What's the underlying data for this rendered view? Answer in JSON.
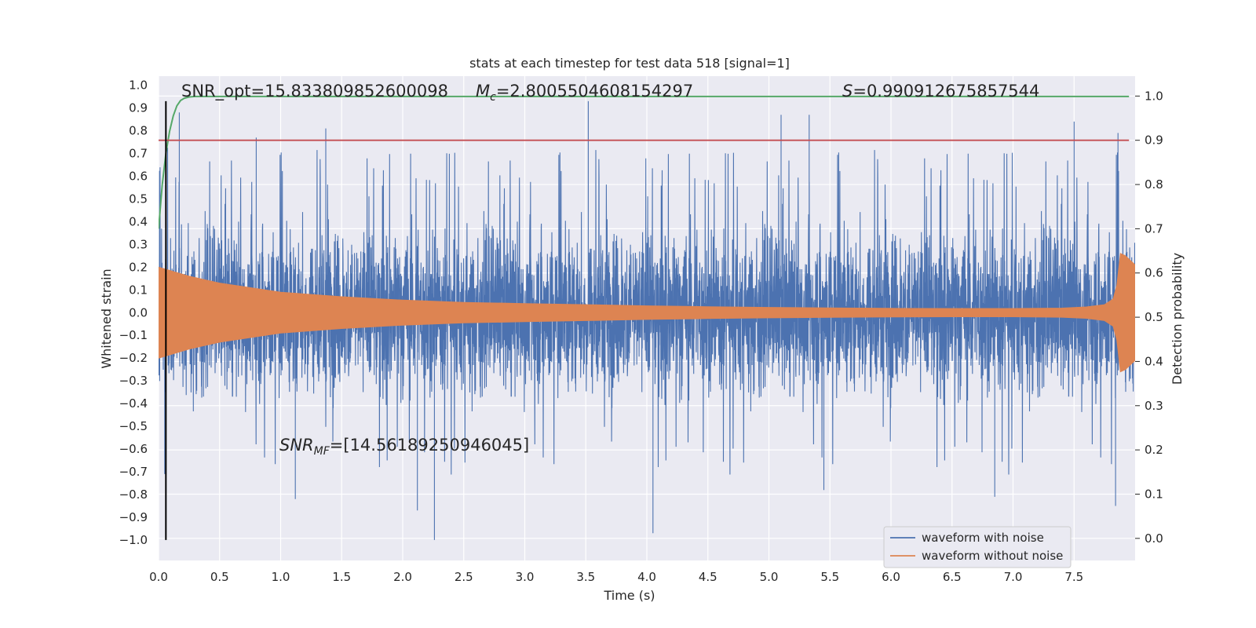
{
  "chart_data": {
    "type": "line",
    "title": "stats at each timestep for test data 518 [signal=1]",
    "xlabel": "Time (s)",
    "ylabel": "Whitened strain",
    "y2label": "Detection probability",
    "xlim": [
      0.0,
      8.0
    ],
    "ylim": [
      -1.09,
      1.04
    ],
    "y2lim": [
      -0.05,
      1.045
    ],
    "xticks": [
      0.0,
      0.5,
      1.0,
      1.5,
      2.0,
      2.5,
      3.0,
      3.5,
      4.0,
      4.5,
      5.0,
      5.5,
      6.0,
      6.5,
      7.0,
      7.5
    ],
    "yticks": [
      -1.0,
      -0.9,
      -0.8,
      -0.7,
      -0.6,
      -0.5,
      -0.4,
      -0.3,
      -0.2,
      -0.1,
      0.0,
      0.1,
      0.2,
      0.3,
      0.4,
      0.5,
      0.6,
      0.7,
      0.8,
      0.9,
      1.0
    ],
    "y2ticks": [
      0.0,
      0.1,
      0.2,
      0.3,
      0.4,
      0.5,
      0.6,
      0.7,
      0.8,
      0.9,
      1.0
    ],
    "grid": true,
    "background": "#eaeaf2",
    "legend_position": "lower-right",
    "series": [
      {
        "name": "waveform with noise",
        "color": "#4c72b0",
        "axis": "left",
        "description": "dense whitened noisy strain, roughly ±0.5 with spikes",
        "peaks": [
          {
            "t": 0.17,
            "v": 0.88
          },
          {
            "t": 0.8,
            "v": 0.77
          },
          {
            "t": 1.37,
            "v": 0.81
          },
          {
            "t": 3.52,
            "v": 0.93
          },
          {
            "t": 5.1,
            "v": 0.87
          },
          {
            "t": 5.33,
            "v": 0.87
          },
          {
            "t": 7.5,
            "v": 0.84
          },
          {
            "t": 7.86,
            "v": 0.79
          }
        ],
        "troughs": [
          {
            "t": 0.05,
            "v": -0.71
          },
          {
            "t": 1.12,
            "v": -0.82
          },
          {
            "t": 2.12,
            "v": -0.87
          },
          {
            "t": 2.26,
            "v": -1.0
          },
          {
            "t": 4.05,
            "v": -0.97
          },
          {
            "t": 5.45,
            "v": -0.78
          },
          {
            "t": 6.85,
            "v": -0.81
          },
          {
            "t": 7.84,
            "v": -0.85
          }
        ]
      },
      {
        "name": "waveform without noise",
        "color": "#dd8452",
        "axis": "left",
        "envelope_t": [
          0.0,
          0.25,
          0.5,
          1.0,
          1.5,
          2.0,
          2.5,
          3.0,
          3.5,
          4.0,
          4.5,
          5.0,
          5.5,
          6.0,
          6.5,
          7.0,
          7.4,
          7.6,
          7.75,
          7.82,
          7.85,
          7.88,
          7.92,
          7.96,
          8.0
        ],
        "envelope_v": [
          0.2,
          0.16,
          0.13,
          0.09,
          0.07,
          0.055,
          0.045,
          0.04,
          0.035,
          0.03,
          0.026,
          0.023,
          0.021,
          0.019,
          0.018,
          0.018,
          0.02,
          0.025,
          0.035,
          0.06,
          0.12,
          0.26,
          0.25,
          0.23,
          0.21
        ]
      },
      {
        "name": "",
        "color": "#55a868",
        "axis": "right",
        "t": [
          0.0,
          0.03,
          0.06,
          0.09,
          0.12,
          0.15,
          0.18,
          0.21,
          0.25,
          0.3,
          0.4,
          7.95
        ],
        "v": [
          0.7,
          0.8,
          0.87,
          0.92,
          0.955,
          0.978,
          0.99,
          0.995,
          0.998,
          0.999,
          0.999,
          0.999
        ]
      }
    ],
    "threshold": {
      "axis": "right",
      "value": 0.9,
      "color": "#c44e52"
    },
    "marker_line": {
      "t": 0.06,
      "color": "#000000"
    },
    "annotations": [
      {
        "id": "snr_opt",
        "text": "SNR_opt=15.833809852600098"
      },
      {
        "id": "mc",
        "symbol": "M",
        "subscript": "c",
        "rest": "=2.8005504608154297"
      },
      {
        "id": "s",
        "symbol": "S",
        "rest": "=0.990912675857544"
      },
      {
        "id": "snr_mf",
        "symbol": "SNR",
        "subscript": "MF",
        "rest": "=[14.56189250946045]"
      }
    ]
  }
}
